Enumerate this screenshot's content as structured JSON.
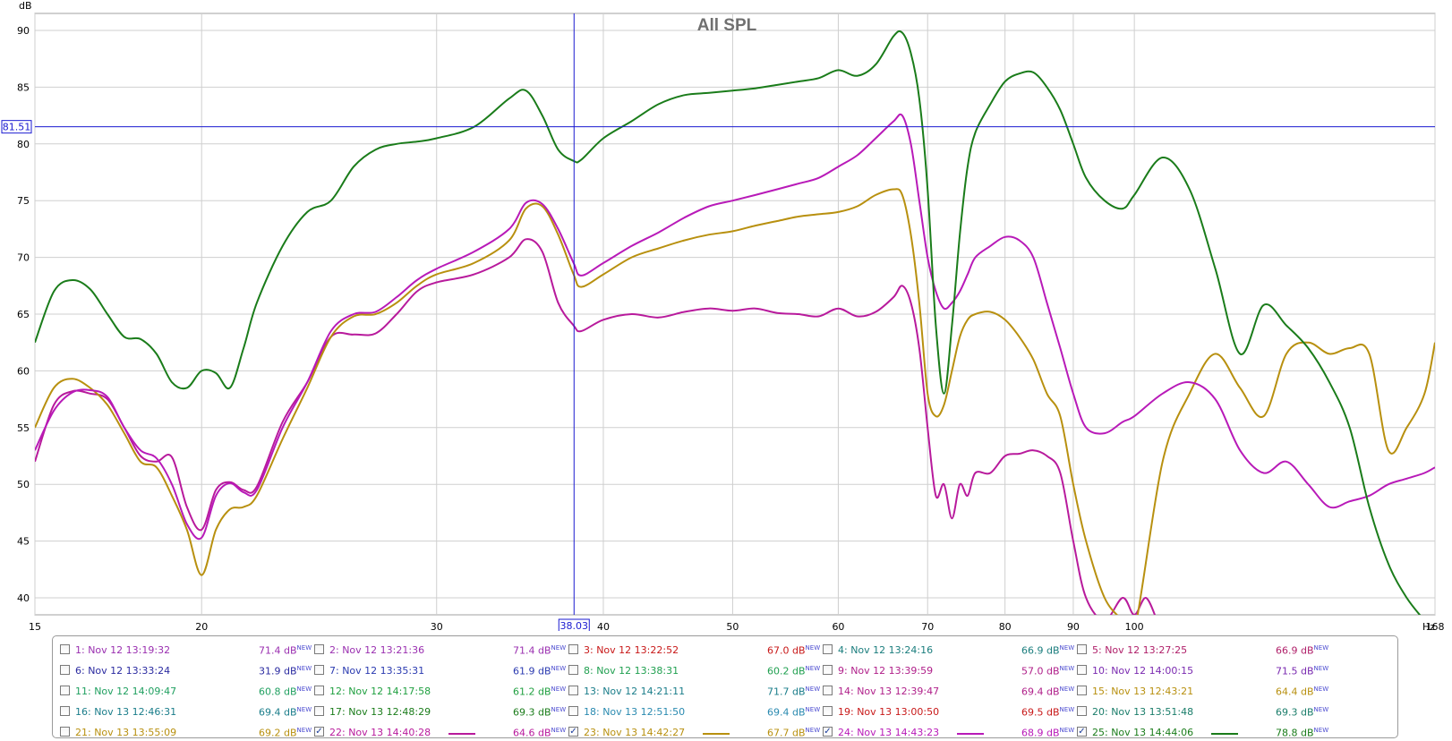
{
  "chart_data": {
    "type": "line",
    "title": "All SPL",
    "ylabel": "dB",
    "xunit": "Hz",
    "xscale": "log",
    "xlim": [
      15,
      168
    ],
    "ylim": [
      38.5,
      91.5
    ],
    "x_ticks": [
      "15",
      "20",
      "30",
      "40",
      "50",
      "60",
      "70",
      "80",
      "90",
      "100",
      "168"
    ],
    "x_tick_values": [
      15,
      20,
      30,
      40,
      50,
      60,
      70,
      80,
      90,
      100,
      168
    ],
    "y_ticks": [
      40,
      45,
      50,
      55,
      60,
      65,
      70,
      75,
      80,
      85,
      90
    ],
    "grid": true,
    "cursor": {
      "x": 38.03,
      "y": 81.51,
      "x_label": "38.03",
      "y_label": "81.51"
    },
    "series": [
      {
        "name": "25: Nov 13 14:44:06",
        "color": "#1a7c1a",
        "x": [
          15,
          15.5,
          16,
          16.5,
          17,
          17.5,
          18,
          18.5,
          19,
          19.5,
          20,
          20.5,
          21,
          21.5,
          22,
          23,
          24,
          25,
          26,
          27,
          28,
          29,
          30,
          32,
          34,
          35,
          36,
          37,
          38,
          38.5,
          40,
          42,
          44,
          46,
          48,
          50,
          52,
          54,
          56,
          58,
          60,
          62,
          64,
          66,
          67,
          68,
          69,
          70,
          71,
          72,
          73,
          74,
          75,
          76,
          78,
          80,
          82,
          84,
          86,
          88,
          90,
          92,
          95,
          98,
          100,
          105,
          110,
          115,
          120,
          125,
          130,
          135,
          140,
          145,
          150,
          155,
          160,
          165,
          168
        ],
        "y": [
          62.5,
          67,
          68,
          67.2,
          65,
          63,
          62.8,
          61.5,
          59,
          58.5,
          60,
          59.8,
          58.5,
          62,
          66,
          71,
          74,
          75,
          78,
          79.5,
          80,
          80.2,
          80.5,
          81.5,
          84,
          84.7,
          82.5,
          79.5,
          78.5,
          78.6,
          80.5,
          82,
          83.5,
          84.3,
          84.5,
          84.7,
          84.9,
          85.2,
          85.5,
          85.8,
          86.5,
          86,
          87,
          89.5,
          89.8,
          88,
          84,
          76,
          64,
          58,
          64,
          72,
          78,
          81,
          83.5,
          85.5,
          86.2,
          86.3,
          85,
          83,
          80,
          77,
          75,
          74.3,
          75.5,
          78.8,
          76,
          69,
          61.5,
          65.8,
          64,
          62,
          59,
          55,
          48,
          43,
          40,
          38,
          37
        ]
      },
      {
        "name": "24: Nov 13 14:43:23",
        "color": "#b81ab8",
        "x": [
          15,
          15.5,
          16,
          16.5,
          17,
          17.5,
          18,
          18.5,
          19,
          19.5,
          20,
          20.5,
          21,
          21.5,
          22,
          23,
          24,
          25,
          26,
          27,
          28,
          29,
          30,
          32,
          34,
          35,
          36,
          37,
          38,
          38.5,
          40,
          42,
          44,
          46,
          48,
          50,
          52,
          54,
          56,
          58,
          60,
          62,
          64,
          66,
          67,
          68,
          69,
          70,
          71,
          72,
          73,
          74,
          75,
          76,
          78,
          80,
          82,
          84,
          86,
          88,
          90,
          92,
          95,
          98,
          100,
          105,
          110,
          115,
          120,
          125,
          130,
          135,
          140,
          145,
          150,
          155,
          160,
          165,
          168
        ],
        "y": [
          53,
          56.5,
          58.1,
          58.3,
          57.7,
          55,
          53,
          52.3,
          50,
          46.5,
          45.3,
          49,
          50.1,
          49.3,
          49.5,
          55,
          59,
          63.5,
          65,
          65.2,
          66.5,
          68,
          69,
          70.5,
          72.5,
          74.8,
          74.7,
          72.5,
          69.5,
          68.4,
          69.5,
          71,
          72.2,
          73.5,
          74.5,
          75,
          75.5,
          76,
          76.5,
          77,
          78,
          79,
          80.5,
          82,
          82.5,
          80,
          75,
          70,
          67,
          65.5,
          66,
          67,
          68.5,
          70,
          71,
          71.8,
          71.5,
          70,
          66,
          62,
          58,
          55,
          54.5,
          55.5,
          56,
          58,
          59,
          57.5,
          53,
          51,
          52,
          50,
          48,
          48.5,
          49,
          50,
          50.5,
          51,
          51.5
        ]
      },
      {
        "name": "23: Nov 13 14:42:27",
        "color": "#b8900f",
        "x": [
          15,
          15.5,
          16,
          16.5,
          17,
          17.5,
          18,
          18.5,
          19,
          19.5,
          20,
          20.5,
          21,
          21.5,
          22,
          23,
          24,
          25,
          26,
          27,
          28,
          29,
          30,
          32,
          34,
          35,
          36,
          37,
          38,
          38.5,
          40,
          42,
          44,
          46,
          48,
          50,
          52,
          54,
          56,
          58,
          60,
          62,
          64,
          66,
          67,
          68,
          69,
          70,
          71,
          72,
          73,
          74,
          75,
          76,
          78,
          80,
          82,
          84,
          86,
          88,
          90,
          92,
          95,
          98,
          100,
          105,
          110,
          115,
          120,
          125,
          130,
          135,
          140,
          145,
          150,
          155,
          160,
          165,
          168
        ],
        "y": [
          55,
          58.5,
          59.3,
          58.5,
          57,
          54.5,
          52,
          51.5,
          49,
          46,
          42,
          46,
          47.8,
          48,
          49,
          54,
          58.5,
          63,
          64.8,
          65,
          66,
          67.5,
          68.5,
          69.5,
          71.5,
          74.3,
          74.5,
          72,
          68.5,
          67.4,
          68.5,
          70,
          70.8,
          71.5,
          72,
          72.3,
          72.8,
          73.2,
          73.6,
          73.8,
          74,
          74.5,
          75.5,
          76,
          75.5,
          72,
          66,
          58,
          56,
          57,
          60,
          63,
          64.5,
          65,
          65.2,
          64.5,
          63,
          61,
          58,
          56,
          50,
          45,
          40,
          38,
          37,
          52,
          58,
          61.5,
          58.5,
          56,
          61.5,
          62.5,
          61.5,
          62,
          61.5,
          53,
          55,
          58,
          62.5
        ]
      },
      {
        "name": "22: Nov 13 14:40:28",
        "color": "#b81a9c",
        "x": [
          15,
          15.5,
          16,
          16.5,
          17,
          17.5,
          18,
          18.5,
          19,
          19.5,
          20,
          20.5,
          21,
          21.5,
          22,
          23,
          24,
          25,
          26,
          27,
          28,
          29,
          30,
          32,
          34,
          35,
          36,
          37,
          38,
          38.5,
          40,
          42,
          44,
          46,
          48,
          50,
          52,
          54,
          56,
          58,
          60,
          62,
          64,
          66,
          67,
          68,
          69,
          70,
          71,
          72,
          73,
          74,
          75,
          76,
          78,
          80,
          82,
          84,
          86,
          88,
          90,
          92,
          95,
          98,
          100,
          102,
          104
        ],
        "y": [
          52,
          57,
          58.2,
          58,
          57.5,
          55,
          52.5,
          52,
          52.4,
          48,
          46,
          49.5,
          50.2,
          49.5,
          49.8,
          55.5,
          59,
          63,
          63.2,
          63.3,
          65,
          67,
          67.8,
          68.5,
          70,
          71.6,
          70.5,
          66,
          64,
          63.5,
          64.5,
          65,
          64.7,
          65.2,
          65.5,
          65.3,
          65.5,
          65.1,
          65,
          64.8,
          65.5,
          64.8,
          65.2,
          66.5,
          67.5,
          66,
          62,
          55,
          49,
          50,
          47,
          50,
          49,
          51,
          51,
          52.5,
          52.7,
          53,
          52.5,
          51,
          45,
          40,
          38,
          40,
          38.5,
          40,
          38
        ]
      }
    ]
  },
  "legend": [
    {
      "name": "1: Nov 12 13:19:32",
      "value": "71.4 dB",
      "badge": "NEW",
      "color": "#9a2fb0",
      "checked": false
    },
    {
      "name": "2: Nov 12 13:21:36",
      "value": "71.4 dB",
      "badge": "NEW",
      "color": "#9a2fb0",
      "checked": false
    },
    {
      "name": "3: Nov 12 13:22:52",
      "value": "67.0 dB",
      "badge": "NEW",
      "color": "#c81818",
      "checked": false
    },
    {
      "name": "4: Nov 12 13:24:16",
      "value": "66.9 dB",
      "badge": "NEW",
      "color": "#1a7d7d",
      "checked": false
    },
    {
      "name": "5: Nov 12 13:27:25",
      "value": "66.9 dB",
      "badge": "NEW",
      "color": "#b0206a",
      "checked": false
    },
    {
      "name": "6: Nov 12 13:33:24",
      "value": "31.9 dB",
      "badge": "NEW",
      "color": "#2a2aa0",
      "checked": false
    },
    {
      "name": "7: Nov 12 13:35:31",
      "value": "61.9 dB",
      "badge": "NEW",
      "color": "#2a3ab0",
      "checked": false
    },
    {
      "name": "8: Nov 12 13:38:31",
      "value": "60.2 dB",
      "badge": "NEW",
      "color": "#20a050",
      "checked": false
    },
    {
      "name": "9: Nov 12 13:39:59",
      "value": "57.0 dB",
      "badge": "NEW",
      "color": "#b0208a",
      "checked": false
    },
    {
      "name": "10: Nov 12 14:00:15",
      "value": "71.5 dB",
      "badge": "NEW",
      "color": "#7a2ab0",
      "checked": false
    },
    {
      "name": "11: Nov 12 14:09:47",
      "value": "60.8 dB",
      "badge": "NEW",
      "color": "#20a060",
      "checked": false
    },
    {
      "name": "12: Nov 12 14:17:58",
      "value": "61.2 dB",
      "badge": "NEW",
      "color": "#20a040",
      "checked": false
    },
    {
      "name": "13: Nov 12 14:21:11",
      "value": "71.7 dB",
      "badge": "NEW",
      "color": "#1a7d8a",
      "checked": false
    },
    {
      "name": "14: Nov 13 12:39:47",
      "value": "69.4 dB",
      "badge": "NEW",
      "color": "#b0208a",
      "checked": false
    },
    {
      "name": "15: Nov 13 12:43:21",
      "value": "64.4 dB",
      "badge": "NEW",
      "color": "#b8900f",
      "checked": false
    },
    {
      "name": "16: Nov 13 12:46:31",
      "value": "69.4 dB",
      "badge": "NEW",
      "color": "#1a7d8a",
      "checked": false
    },
    {
      "name": "17: Nov 13 12:48:29",
      "value": "69.3 dB",
      "badge": "NEW",
      "color": "#1a7c1a",
      "checked": false
    },
    {
      "name": "18: Nov 13 12:51:50",
      "value": "69.4 dB",
      "badge": "NEW",
      "color": "#2a8ab0",
      "checked": false
    },
    {
      "name": "19: Nov 13 13:00:50",
      "value": "69.5 dB",
      "badge": "NEW",
      "color": "#c81818",
      "checked": false
    },
    {
      "name": "20: Nov 13 13:51:48",
      "value": "69.3 dB",
      "badge": "NEW",
      "color": "#1a7d6a",
      "checked": false
    },
    {
      "name": "21: Nov 13 13:55:09",
      "value": "69.2 dB",
      "badge": "NEW",
      "color": "#b8900f",
      "checked": false
    },
    {
      "name": "22: Nov 13 14:40:28",
      "value": "64.6 dB",
      "badge": "NEW",
      "color": "#b81a9c",
      "checked": true
    },
    {
      "name": "23: Nov 13 14:42:27",
      "value": "67.7 dB",
      "badge": "NEW",
      "color": "#b8900f",
      "checked": true
    },
    {
      "name": "24: Nov 13 14:43:23",
      "value": "68.9 dB",
      "badge": "NEW",
      "color": "#b81ab8",
      "checked": true
    },
    {
      "name": "25: Nov 13 14:44:06",
      "value": "78.8 dB",
      "badge": "NEW",
      "color": "#1a7c1a",
      "checked": true
    }
  ]
}
